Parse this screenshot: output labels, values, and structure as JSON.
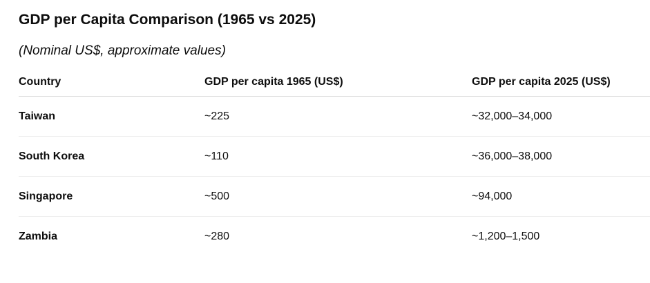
{
  "title": "GDP per Capita Comparison (1965 vs 2025)",
  "subtitle": "(Nominal US$, approximate values)",
  "table": {
    "headers": [
      "Country",
      "GDP per capita 1965 (US$)",
      "GDP per capita 2025 (US$)"
    ],
    "rows": [
      {
        "country": "Taiwan",
        "gdp_1965": "~225",
        "gdp_2025": "~32,000–34,000"
      },
      {
        "country": "South Korea",
        "gdp_1965": "~110",
        "gdp_2025": "~36,000–38,000"
      },
      {
        "country": "Singapore",
        "gdp_1965": "~500",
        "gdp_2025": "~94,000"
      },
      {
        "country": "Zambia",
        "gdp_1965": "~280",
        "gdp_2025": "~1,200–1,500"
      }
    ]
  }
}
